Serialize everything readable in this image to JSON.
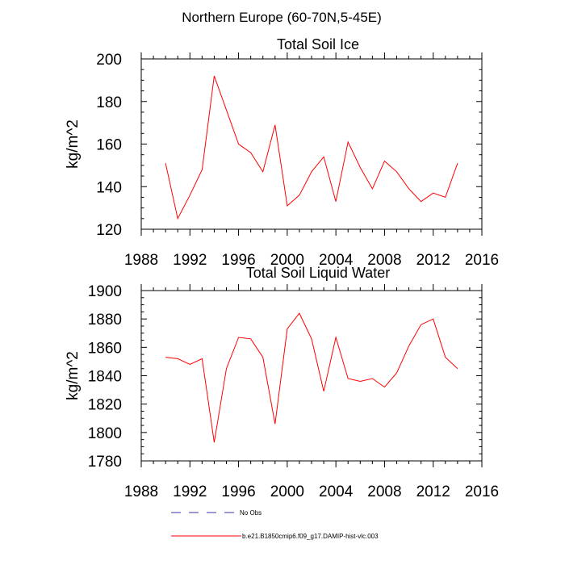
{
  "figure": {
    "suptitle": "Northern Europe (60-70N,5-45E)"
  },
  "chart_data": [
    {
      "type": "line",
      "title": "Total Soil Ice",
      "xlabel": "",
      "ylabel": "kg/m^2",
      "xlim": [
        1988,
        2016
      ],
      "ylim": [
        120,
        200
      ],
      "xticks": [
        1988,
        1992,
        1996,
        2000,
        2004,
        2008,
        2012,
        2016
      ],
      "yticks": [
        120,
        140,
        160,
        180,
        200
      ],
      "grid": false,
      "x": [
        1990,
        1991,
        1992,
        1993,
        1994,
        1995,
        1996,
        1997,
        1998,
        1999,
        2000,
        2001,
        2002,
        2003,
        2004,
        2005,
        2006,
        2007,
        2008,
        2009,
        2010,
        2011,
        2012,
        2013,
        2014
      ],
      "series": [
        {
          "name": "b.e21.B1850cmip6.f09_g17.DAMIP-hist-vlc.003",
          "color": "#ff0000",
          "values": [
            151,
            125,
            136,
            148,
            192,
            176,
            160,
            156,
            147,
            169,
            131,
            136,
            147,
            154,
            133,
            161,
            149,
            139,
            152,
            147,
            139,
            133,
            137,
            135,
            151
          ]
        }
      ]
    },
    {
      "type": "line",
      "title": "Total Soil Liquid Water",
      "xlabel": "",
      "ylabel": "kg/m^2",
      "xlim": [
        1988,
        2016
      ],
      "ylim": [
        1780,
        1900
      ],
      "xticks": [
        1988,
        1992,
        1996,
        2000,
        2004,
        2008,
        2012,
        2016
      ],
      "yticks": [
        1780,
        1800,
        1820,
        1840,
        1860,
        1880,
        1900
      ],
      "grid": false,
      "x": [
        1990,
        1991,
        1992,
        1993,
        1994,
        1995,
        1996,
        1997,
        1998,
        1999,
        2000,
        2001,
        2002,
        2003,
        2004,
        2005,
        2006,
        2007,
        2008,
        2009,
        2010,
        2011,
        2012,
        2013,
        2014
      ],
      "series": [
        {
          "name": "b.e21.B1850cmip6.f09_g17.DAMIP-hist-vlc.003",
          "color": "#ff0000",
          "values": [
            1853,
            1852,
            1848,
            1852,
            1793,
            1845,
            1867,
            1866,
            1853,
            1806,
            1873,
            1884,
            1866,
            1829,
            1867,
            1838,
            1836,
            1838,
            1832,
            1842,
            1861,
            1876,
            1880,
            1853,
            1845
          ]
        }
      ]
    }
  ],
  "legend": {
    "placement": "bottom",
    "entries": [
      {
        "label": "No Obs",
        "style": "dashed",
        "color": "#3333aa"
      },
      {
        "label": "b.e21.B1850cmip6.f09_g17.DAMIP-hist-vlc.003",
        "style": "solid",
        "color": "#ff0000"
      }
    ]
  }
}
